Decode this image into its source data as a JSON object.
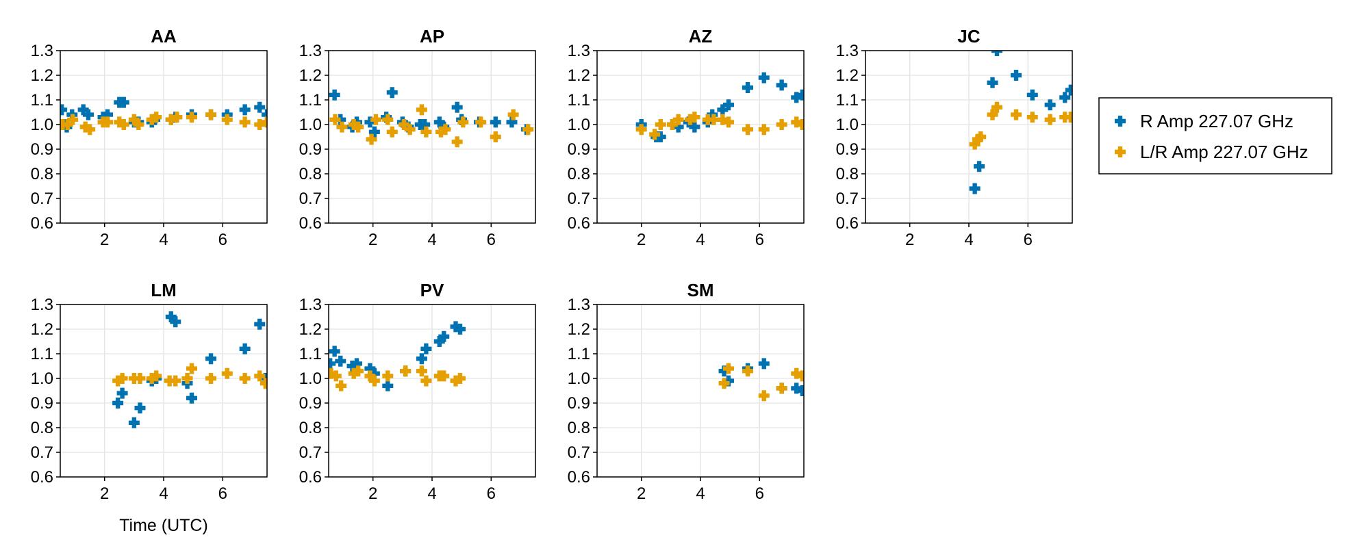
{
  "chart_data": {
    "type": "scatter",
    "xlabel": "Time (UTC)",
    "xlim": [
      0.5,
      7.5
    ],
    "ylim": [
      0.6,
      1.3
    ],
    "xticks": [
      2,
      4,
      6
    ],
    "yticks": [
      0.6,
      0.7,
      0.8,
      0.9,
      1.0,
      1.1,
      1.2,
      1.3
    ],
    "ytick_labels": [
      "0.6",
      "0.7",
      "0.8",
      "0.9",
      "1.0",
      "1.1",
      "1.2",
      "1.3"
    ],
    "grid": true,
    "marker": "plus",
    "legend": {
      "placement": "right",
      "entries": [
        {
          "label": "R Amp 227.07 GHz",
          "color": "#0072b2"
        },
        {
          "label": "L/R Amp 227.07 GHz",
          "color": "#e69f00"
        }
      ]
    },
    "panels": [
      {
        "title": "AA",
        "series": [
          {
            "name": "R Amp 227.07 GHz",
            "x": [
              0.55,
              0.65,
              0.72,
              0.9,
              1.28,
              1.45,
              1.95,
              2.1,
              2.5,
              2.65,
              3.0,
              3.15,
              3.6,
              3.7,
              4.25,
              4.4,
              4.95,
              5.6,
              6.15,
              6.75,
              7.25,
              7.5
            ],
            "y": [
              1.06,
              1.0,
              0.99,
              1.04,
              1.06,
              1.04,
              1.03,
              1.04,
              1.09,
              1.09,
              1.01,
              1.01,
              1.01,
              1.02,
              1.02,
              1.03,
              1.04,
              1.04,
              1.04,
              1.06,
              1.07,
              1.04
            ]
          },
          {
            "name": "L/R Amp 227.07 GHz",
            "x": [
              0.58,
              0.75,
              0.92,
              1.35,
              1.5,
              1.95,
              2.1,
              2.5,
              2.65,
              3.0,
              3.15,
              3.6,
              3.75,
              4.25,
              4.45,
              4.95,
              5.6,
              6.15,
              6.75,
              7.25,
              7.5
            ],
            "y": [
              1.0,
              1.0,
              1.02,
              0.99,
              0.98,
              1.01,
              1.01,
              1.01,
              1.0,
              1.02,
              1.0,
              1.02,
              1.03,
              1.02,
              1.03,
              1.03,
              1.04,
              1.02,
              1.01,
              1.0,
              1.01
            ]
          }
        ]
      },
      {
        "title": "AP",
        "series": [
          {
            "name": "R Amp 227.07 GHz",
            "x": [
              0.7,
              0.9,
              1.3,
              1.45,
              1.9,
              2.05,
              2.45,
              2.65,
              3.0,
              3.2,
              3.6,
              3.75,
              4.25,
              4.4,
              4.85,
              5.0,
              5.6,
              6.15,
              6.7,
              7.2
            ],
            "y": [
              1.12,
              1.02,
              0.99,
              1.01,
              1.01,
              0.97,
              1.03,
              1.13,
              1.01,
              0.99,
              1.0,
              1.0,
              1.01,
              0.99,
              1.07,
              1.02,
              1.01,
              1.01,
              1.01,
              0.98
            ]
          },
          {
            "name": "L/R Amp 227.07 GHz",
            "x": [
              0.72,
              0.95,
              1.35,
              1.5,
              1.95,
              2.1,
              2.5,
              2.65,
              3.05,
              3.25,
              3.65,
              3.8,
              4.3,
              4.45,
              4.85,
              5.05,
              5.65,
              6.15,
              6.75,
              7.25
            ],
            "y": [
              1.02,
              0.99,
              1.0,
              0.99,
              0.94,
              1.02,
              1.02,
              0.97,
              1.0,
              0.98,
              1.06,
              0.97,
              0.97,
              0.98,
              0.93,
              1.01,
              1.01,
              0.95,
              1.04,
              0.98
            ]
          }
        ]
      },
      {
        "title": "AZ",
        "series": [
          {
            "name": "R Amp 227.07 GHz",
            "x": [
              2.0,
              2.5,
              2.65,
              3.05,
              3.25,
              3.6,
              3.8,
              4.25,
              4.4,
              4.75,
              4.95,
              5.6,
              6.15,
              6.75,
              7.25,
              7.45
            ],
            "y": [
              1.0,
              0.95,
              0.95,
              1.0,
              0.99,
              1.01,
              0.99,
              1.01,
              1.04,
              1.06,
              1.08,
              1.15,
              1.19,
              1.16,
              1.11,
              1.12
            ]
          },
          {
            "name": "L/R Amp 227.07 GHz",
            "x": [
              2.0,
              2.45,
              2.65,
              3.05,
              3.25,
              3.65,
              3.8,
              4.25,
              4.45,
              4.75,
              4.95,
              5.6,
              6.15,
              6.75,
              7.25,
              7.45
            ],
            "y": [
              0.98,
              0.96,
              1.0,
              1.0,
              1.02,
              1.02,
              1.03,
              1.02,
              1.02,
              1.02,
              1.01,
              0.98,
              0.98,
              1.0,
              1.01,
              1.0
            ]
          }
        ]
      },
      {
        "title": "JC",
        "series": [
          {
            "name": "R Amp 227.07 GHz",
            "x": [
              4.2,
              4.35,
              4.8,
              4.95,
              5.6,
              6.15,
              6.75,
              7.25,
              7.45
            ],
            "y": [
              0.74,
              0.83,
              1.17,
              1.3,
              1.2,
              1.12,
              1.08,
              1.11,
              1.14
            ]
          },
          {
            "name": "L/R Amp 227.07 GHz",
            "x": [
              4.2,
              4.3,
              4.4,
              4.8,
              4.95,
              5.6,
              6.15,
              6.75,
              7.25,
              7.45
            ],
            "y": [
              0.92,
              0.94,
              0.95,
              1.04,
              1.07,
              1.04,
              1.03,
              1.02,
              1.03,
              1.03
            ]
          }
        ]
      },
      {
        "title": "LM",
        "series": [
          {
            "name": "R Amp 227.07 GHz",
            "x": [
              2.45,
              2.6,
              3.0,
              3.2,
              3.6,
              3.75,
              4.25,
              4.4,
              4.8,
              4.95,
              5.6,
              6.75,
              7.25,
              7.45
            ],
            "y": [
              0.9,
              0.94,
              0.82,
              0.88,
              0.99,
              1.0,
              1.25,
              1.23,
              0.98,
              0.92,
              1.08,
              1.12,
              1.22,
              1.0
            ]
          },
          {
            "name": "L/R Amp 227.07 GHz",
            "x": [
              2.45,
              2.6,
              3.0,
              3.2,
              3.6,
              3.75,
              4.2,
              4.4,
              4.8,
              4.95,
              5.6,
              6.15,
              6.75,
              7.25,
              7.45
            ],
            "y": [
              0.99,
              1.0,
              1.0,
              1.0,
              1.0,
              1.01,
              0.99,
              0.99,
              1.0,
              1.04,
              1.0,
              1.02,
              1.0,
              1.01,
              0.98
            ]
          }
        ]
      },
      {
        "title": "PV",
        "series": [
          {
            "name": "R Amp 227.07 GHz",
            "x": [
              0.55,
              0.7,
              0.9,
              1.3,
              1.45,
              1.9,
              2.05,
              2.5,
              3.1,
              3.65,
              3.8,
              4.25,
              4.4,
              4.8,
              4.95
            ],
            "y": [
              1.06,
              1.11,
              1.07,
              1.05,
              1.06,
              1.04,
              1.02,
              0.97,
              1.03,
              1.08,
              1.12,
              1.15,
              1.17,
              1.21,
              1.2
            ]
          },
          {
            "name": "L/R Amp 227.07 GHz",
            "x": [
              0.58,
              0.75,
              0.92,
              1.35,
              1.5,
              1.9,
              2.05,
              2.5,
              3.1,
              3.65,
              3.8,
              4.25,
              4.4,
              4.8,
              4.95
            ],
            "y": [
              1.02,
              1.01,
              0.97,
              1.02,
              1.03,
              1.01,
              0.99,
              1.01,
              1.03,
              1.03,
              0.99,
              1.01,
              1.01,
              0.99,
              1.0
            ]
          }
        ]
      },
      {
        "title": "SM",
        "series": [
          {
            "name": "R Amp 227.07 GHz",
            "x": [
              4.8,
              4.95,
              5.6,
              6.15,
              6.75,
              7.25,
              7.45
            ],
            "y": [
              1.03,
              0.99,
              1.04,
              1.06,
              0.96,
              0.96,
              0.95
            ]
          },
          {
            "name": "L/R Amp 227.07 GHz",
            "x": [
              4.8,
              4.95,
              5.6,
              6.15,
              6.75,
              7.25,
              7.45
            ],
            "y": [
              0.98,
              1.04,
              1.03,
              0.93,
              0.96,
              1.02,
              1.01
            ]
          }
        ]
      }
    ]
  }
}
